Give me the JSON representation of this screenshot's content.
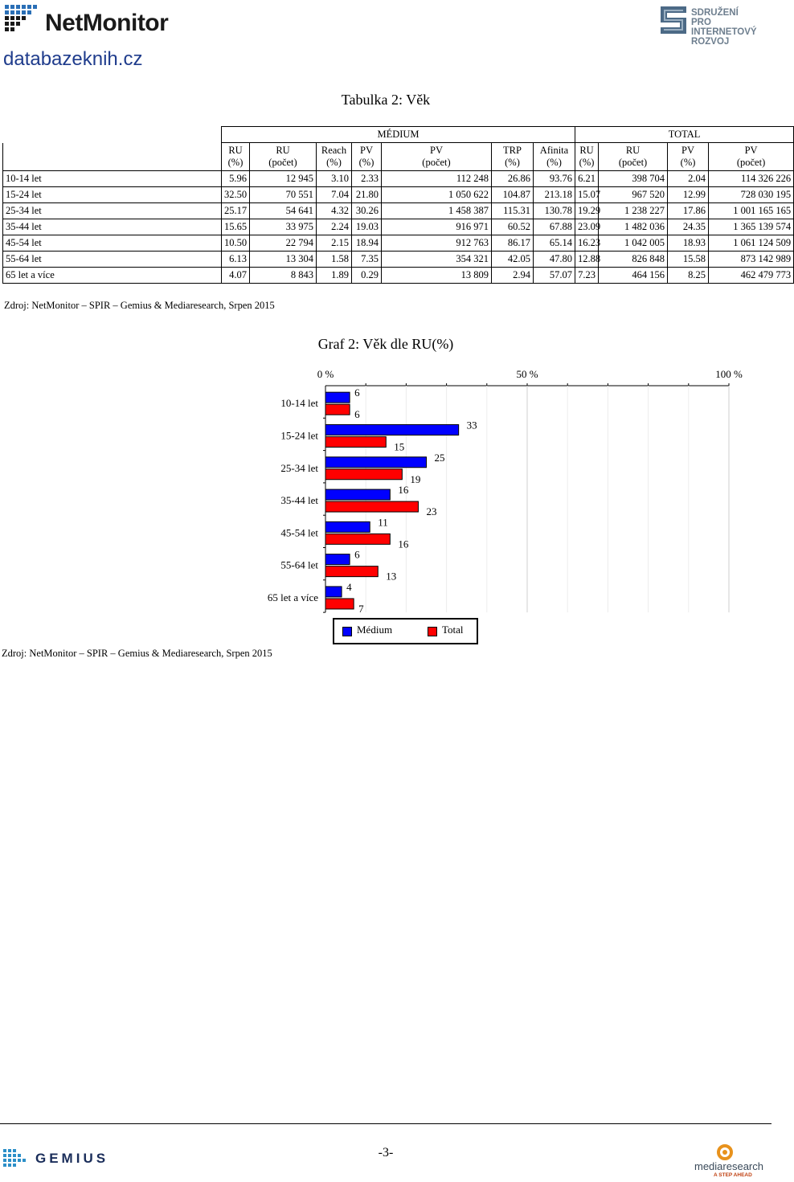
{
  "header": {
    "brand": "NetMonitor",
    "partner_lines": [
      "SDRUŽENÍ",
      "PRO INTERNETOVÝ",
      "ROZVOJ"
    ],
    "site": "databazeknih.cz"
  },
  "table": {
    "title": "Tabulka 2: Věk",
    "group_headers": {
      "medium": "MÉDIUM",
      "total": "TOTAL"
    },
    "columns": [
      {
        "l1": "RU",
        "l2": "(%)"
      },
      {
        "l1": "RU",
        "l2": "(počet)"
      },
      {
        "l1": "Reach",
        "l2": "(%)"
      },
      {
        "l1": "PV",
        "l2": "(%)"
      },
      {
        "l1": "PV",
        "l2": "(počet)"
      },
      {
        "l1": "TRP",
        "l2": "(%)"
      },
      {
        "l1": "Afinita",
        "l2": "(%)"
      },
      {
        "l1": "RU",
        "l2": "(%)"
      },
      {
        "l1": "RU",
        "l2": "(počet)"
      },
      {
        "l1": "PV",
        "l2": "(%)"
      },
      {
        "l1": "PV",
        "l2": "(počet)"
      }
    ],
    "rows": [
      {
        "label": "10-14 let",
        "cells": [
          "5.96",
          "12 945",
          "3.10",
          "2.33",
          "112 248",
          "26.86",
          "93.76",
          "6.21",
          "398 704",
          "2.04",
          "114 326 226"
        ]
      },
      {
        "label": "15-24 let",
        "cells": [
          "32.50",
          "70 551",
          "7.04",
          "21.80",
          "1 050 622",
          "104.87",
          "213.18",
          "15.07",
          "967 520",
          "12.99",
          "728 030 195"
        ]
      },
      {
        "label": "25-34 let",
        "cells": [
          "25.17",
          "54 641",
          "4.32",
          "30.26",
          "1 458 387",
          "115.31",
          "130.78",
          "19.29",
          "1 238 227",
          "17.86",
          "1 001 165 165"
        ]
      },
      {
        "label": "35-44 let",
        "cells": [
          "15.65",
          "33 975",
          "2.24",
          "19.03",
          "916 971",
          "60.52",
          "67.88",
          "23.09",
          "1 482 036",
          "24.35",
          "1 365 139 574"
        ]
      },
      {
        "label": "45-54 let",
        "cells": [
          "10.50",
          "22 794",
          "2.15",
          "18.94",
          "912 763",
          "86.17",
          "65.14",
          "16.23",
          "1 042 005",
          "18.93",
          "1 061 124 509"
        ]
      },
      {
        "label": "55-64 let",
        "cells": [
          "6.13",
          "13 304",
          "1.58",
          "7.35",
          "354 321",
          "42.05",
          "47.80",
          "12.88",
          "826 848",
          "15.58",
          "873 142 989"
        ]
      },
      {
        "label": "65 let a více",
        "cells": [
          "4.07",
          "8 843",
          "1.89",
          "0.29",
          "13 809",
          "2.94",
          "57.07",
          "7.23",
          "464 156",
          "8.25",
          "462 479 773"
        ]
      }
    ],
    "source": "Zdroj: NetMonitor – SPIR – Gemius & Mediaresearch, Srpen 2015"
  },
  "chart_data": {
    "type": "bar",
    "orientation": "horizontal",
    "title": "Graf 2: Věk dle RU(%)",
    "categories": [
      "10-14 let",
      "15-24 let",
      "25-34 let",
      "35-44 let",
      "45-54 let",
      "55-64 let",
      "65 let a více"
    ],
    "series": [
      {
        "name": "Médium",
        "color": "#0000ff",
        "values": [
          6,
          33,
          25,
          16,
          11,
          6,
          4
        ]
      },
      {
        "name": "Total",
        "color": "#ff0000",
        "values": [
          6,
          15,
          19,
          23,
          16,
          13,
          7
        ]
      }
    ],
    "xlim": [
      0,
      100
    ],
    "tick_labels": [
      "0 %",
      "50 %",
      "100 %"
    ],
    "tick_values": [
      0,
      50,
      100
    ],
    "legend": "bottom-center",
    "grid": true
  },
  "chart_source": "Zdroj: NetMonitor – SPIR – Gemius & Mediaresearch, Srpen 2015",
  "footer": {
    "page_number": "-3-",
    "left_brand": "GEMIUS",
    "right_brand": "mediaresearch",
    "right_tagline": "A STEP AHEAD"
  }
}
